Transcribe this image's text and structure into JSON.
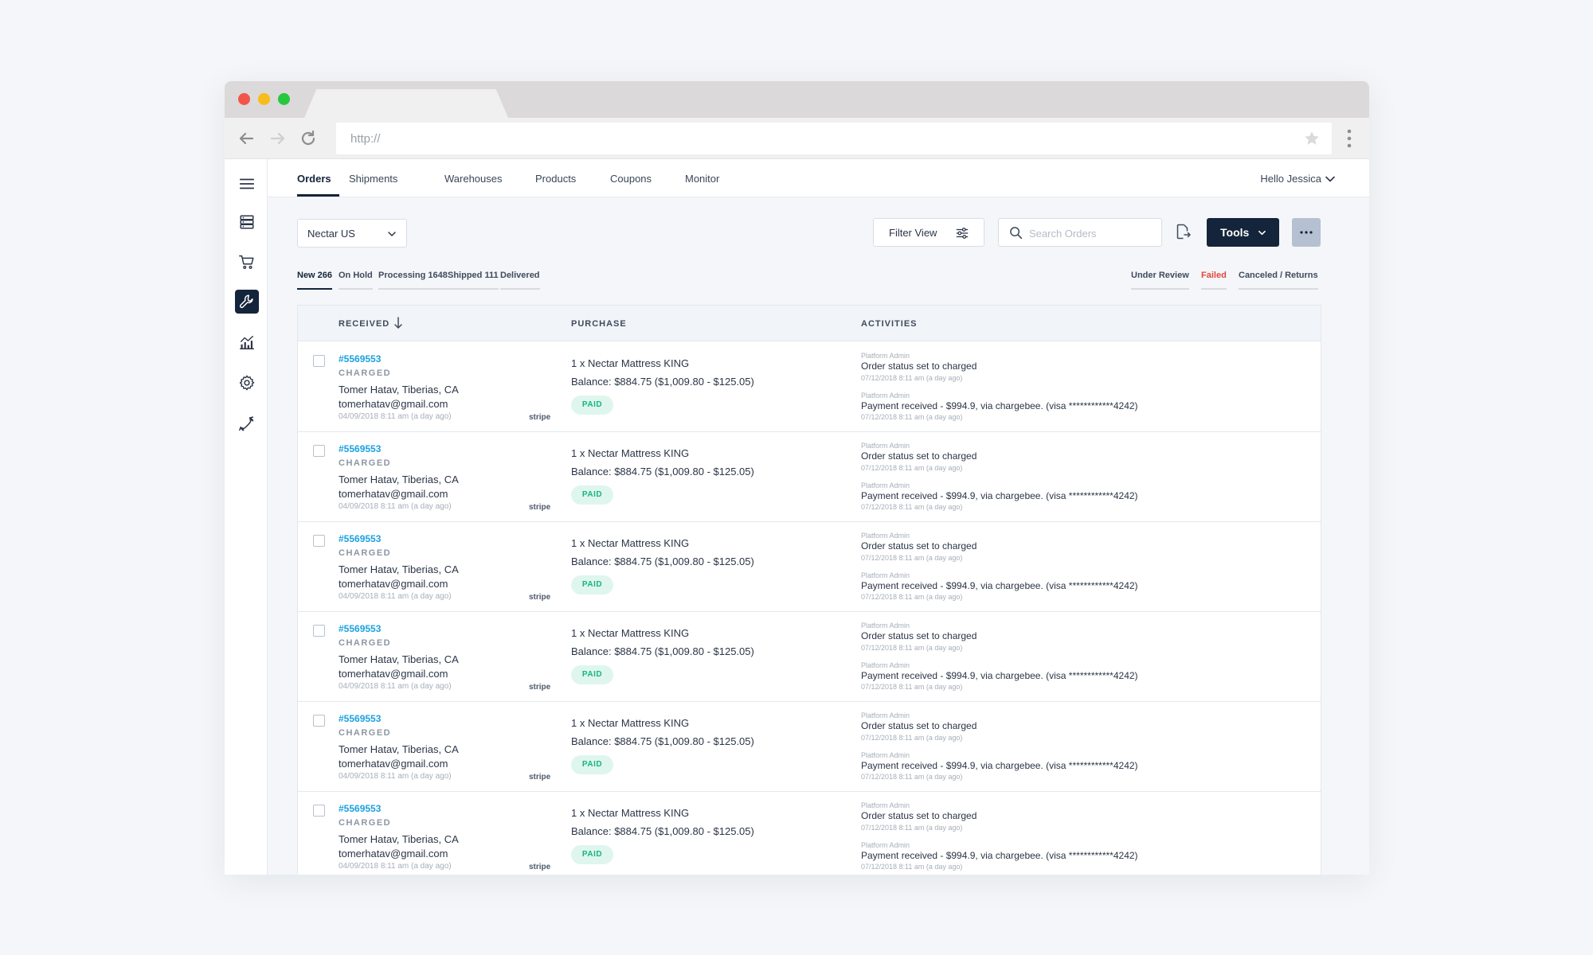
{
  "browser": {
    "url_placeholder": "http://"
  },
  "topnav": {
    "items": [
      {
        "label": "Orders",
        "active": true
      },
      {
        "label": "Shipments"
      },
      {
        "label": "Warehouses"
      },
      {
        "label": "Products"
      },
      {
        "label": "Coupons"
      },
      {
        "label": "Monitor"
      }
    ],
    "user_greeting": "Hello Jessica"
  },
  "sidebar": {
    "icons": [
      "menu-icon",
      "database-icon",
      "cart-icon",
      "wrench-icon",
      "analytics-icon",
      "gear-icon",
      "phone-icon"
    ],
    "active": "wrench-icon"
  },
  "toolbar": {
    "store": "Nectar US",
    "filter_label": "Filter View",
    "search_placeholder": "Search Orders",
    "tools_label": "Tools"
  },
  "status_tabs": {
    "left": [
      {
        "label": "New 266",
        "active": true
      },
      {
        "label": "On Hold"
      },
      {
        "label": "Processing 1648"
      },
      {
        "label": "Shipped 111"
      },
      {
        "label": "Delivered"
      }
    ],
    "right": [
      {
        "label": "Under Review"
      },
      {
        "label": "Failed",
        "color": "#e2473c"
      },
      {
        "label": "Canceled / Returns"
      }
    ]
  },
  "table": {
    "headers": {
      "received": "RECEIVED",
      "purchase": "PURCHASE",
      "activities": "ACTIVITIES"
    },
    "rows": [
      {
        "id": "#5569553",
        "status": "CHARGED",
        "customer": "Tomer Hatav, Tiberias, CA",
        "email": "tomerhatav@gmail.com",
        "date": "04/09/2018 8:11 am (a day ago)",
        "gateway": "stripe",
        "purchase": "1 x Nectar Mattress KING",
        "balance": "Balance: $884.75 ($1,009.80 - $125.05)",
        "badge": "PAID",
        "activities": [
          {
            "who": "Platform Admin",
            "text": "Order status set to charged",
            "date": "07/12/2018 8:11 am (a day ago)"
          },
          {
            "who": "Platform Admin",
            "text": "Payment received - $994.9, via chargebee. (visa ************4242)",
            "date": "07/12/2018 8:11 am (a day ago)"
          }
        ]
      },
      {
        "id": "#5569553",
        "status": "CHARGED",
        "customer": "Tomer Hatav, Tiberias, CA",
        "email": "tomerhatav@gmail.com",
        "date": "04/09/2018 8:11 am (a day ago)",
        "gateway": "stripe",
        "purchase": "1 x Nectar Mattress KING",
        "balance": "Balance: $884.75 ($1,009.80 - $125.05)",
        "badge": "PAID",
        "activities": [
          {
            "who": "Platform Admin",
            "text": "Order status set to charged",
            "date": "07/12/2018 8:11 am (a day ago)"
          },
          {
            "who": "Platform Admin",
            "text": "Payment received - $994.9, via chargebee. (visa ************4242)",
            "date": "07/12/2018 8:11 am (a day ago)"
          }
        ]
      },
      {
        "id": "#5569553",
        "status": "CHARGED",
        "customer": "Tomer Hatav, Tiberias, CA",
        "email": "tomerhatav@gmail.com",
        "date": "04/09/2018 8:11 am (a day ago)",
        "gateway": "stripe",
        "purchase": "1 x Nectar Mattress KING",
        "balance": "Balance: $884.75 ($1,009.80 - $125.05)",
        "badge": "PAID",
        "activities": [
          {
            "who": "Platform Admin",
            "text": "Order status set to charged",
            "date": "07/12/2018 8:11 am (a day ago)"
          },
          {
            "who": "Platform Admin",
            "text": "Payment received - $994.9, via chargebee. (visa ************4242)",
            "date": "07/12/2018 8:11 am (a day ago)"
          }
        ]
      },
      {
        "id": "#5569553",
        "status": "CHARGED",
        "customer": "Tomer Hatav, Tiberias, CA",
        "email": "tomerhatav@gmail.com",
        "date": "04/09/2018 8:11 am (a day ago)",
        "gateway": "stripe",
        "purchase": "1 x Nectar Mattress KING",
        "balance": "Balance: $884.75 ($1,009.80 - $125.05)",
        "badge": "PAID",
        "activities": [
          {
            "who": "Platform Admin",
            "text": "Order status set to charged",
            "date": "07/12/2018 8:11 am (a day ago)"
          },
          {
            "who": "Platform Admin",
            "text": "Payment received - $994.9, via chargebee. (visa ************4242)",
            "date": "07/12/2018 8:11 am (a day ago)"
          }
        ]
      },
      {
        "id": "#5569553",
        "status": "CHARGED",
        "customer": "Tomer Hatav, Tiberias, CA",
        "email": "tomerhatav@gmail.com",
        "date": "04/09/2018 8:11 am (a day ago)",
        "gateway": "stripe",
        "purchase": "1 x Nectar Mattress KING",
        "balance": "Balance: $884.75 ($1,009.80 - $125.05)",
        "badge": "PAID",
        "activities": [
          {
            "who": "Platform Admin",
            "text": "Order status set to charged",
            "date": "07/12/2018 8:11 am (a day ago)"
          },
          {
            "who": "Platform Admin",
            "text": "Payment received - $994.9, via chargebee. (visa ************4242)",
            "date": "07/12/2018 8:11 am (a day ago)"
          }
        ]
      },
      {
        "id": "#5569553",
        "status": "CHARGED",
        "customer": "Tomer Hatav, Tiberias, CA",
        "email": "tomerhatav@gmail.com",
        "date": "04/09/2018 8:11 am (a day ago)",
        "gateway": "stripe",
        "purchase": "1 x Nectar Mattress KING",
        "balance": "Balance: $884.75 ($1,009.80 - $125.05)",
        "badge": "PAID",
        "activities": [
          {
            "who": "Platform Admin",
            "text": "Order status set to charged",
            "date": "07/12/2018 8:11 am (a day ago)"
          },
          {
            "who": "Platform Admin",
            "text": "Payment received - $994.9, via chargebee. (visa ************4242)",
            "date": "07/12/2018 8:11 am (a day ago)"
          }
        ]
      }
    ]
  }
}
